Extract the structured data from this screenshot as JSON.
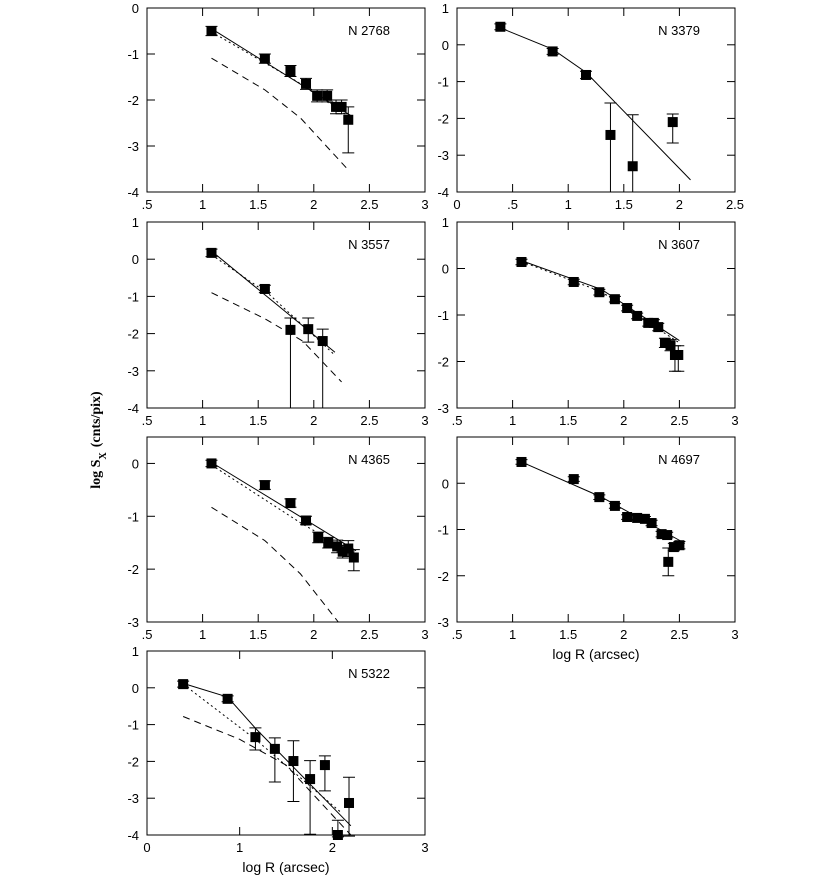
{
  "ylabel_parts": [
    "log S",
    "X",
    "(cnts/pix)"
  ],
  "chart_data": [
    {
      "type": "scatter",
      "label": "N 2768",
      "x": [
        1.08,
        1.56,
        1.79,
        1.93,
        2.03,
        2.12,
        2.2,
        2.25,
        2.31
      ],
      "y": [
        -0.5,
        -1.1,
        -1.37,
        -1.65,
        -1.91,
        -1.91,
        -2.15,
        -2.15,
        -2.43
      ],
      "yerr_minus": [
        0.1,
        0.1,
        0.12,
        0.12,
        0.13,
        0.13,
        0.15,
        0.15,
        0.72
      ],
      "yerr_plus": [
        0.1,
        0.1,
        0.12,
        0.12,
        0.13,
        0.13,
        0.15,
        0.15,
        0.28
      ],
      "lines": [
        {
          "style": "solid",
          "x": [
            1.08,
            2.34
          ],
          "y": [
            -0.45,
            -2.35
          ]
        },
        {
          "style": "dotted",
          "x": [
            1.08,
            1.85,
            2.34
          ],
          "y": [
            -0.52,
            -1.6,
            -2.4
          ]
        },
        {
          "style": "dashed",
          "x": [
            1.08,
            1.56,
            1.88,
            2.31
          ],
          "y": [
            -1.09,
            -1.78,
            -2.39,
            -3.52
          ]
        }
      ],
      "xlim": [
        0.5,
        3
      ],
      "ylim": [
        -4,
        0
      ],
      "xticks": [
        {
          "value": 0.5,
          "label": ".5"
        },
        1,
        1.5,
        2,
        2.5,
        3
      ],
      "yticks": [
        -4,
        -3,
        -2,
        -1,
        0
      ]
    },
    {
      "type": "scatter",
      "label": "N 3379",
      "x": [
        0.39,
        0.86,
        1.16,
        1.38,
        1.58,
        1.94
      ],
      "y": [
        0.49,
        -0.18,
        -0.82,
        -2.45,
        -3.3,
        -2.1
      ],
      "yerr_minus": [
        0.08,
        0.08,
        0.1,
        1.55,
        0.7,
        0.57
      ],
      "yerr_plus": [
        0.08,
        0.08,
        0.1,
        0.87,
        1.4,
        0.22
      ],
      "lines": [
        {
          "style": "solid",
          "x": [
            0.39,
            0.86,
            1.16,
            2.1
          ],
          "y": [
            0.46,
            -0.12,
            -0.75,
            -3.67
          ]
        }
      ],
      "xlim": [
        0,
        2.5
      ],
      "ylim": [
        -4,
        1
      ],
      "xticks": [
        0,
        {
          "value": 0.5,
          "label": ".5"
        },
        1,
        1.5,
        2,
        2.5
      ],
      "yticks": [
        -4,
        -3,
        -2,
        -1,
        0,
        1
      ]
    },
    {
      "type": "scatter",
      "label": "N 3557",
      "x": [
        1.08,
        1.56,
        1.79,
        1.95,
        2.08
      ],
      "y": [
        0.17,
        -0.8,
        -1.9,
        -1.88,
        -2.2
      ],
      "yerr_minus": [
        0.1,
        0.1,
        2.1,
        0.35,
        1.8
      ],
      "yerr_plus": [
        0.1,
        0.1,
        0.32,
        0.3,
        0.32
      ],
      "lines": [
        {
          "style": "solid",
          "x": [
            1.08,
            2.19
          ],
          "y": [
            0.22,
            -2.5
          ]
        },
        {
          "style": "dotted",
          "x": [
            1.08,
            1.6,
            2.19
          ],
          "y": [
            0.12,
            -0.95,
            -2.58
          ]
        },
        {
          "style": "dashed",
          "x": [
            1.08,
            1.56,
            1.9,
            2.25
          ],
          "y": [
            -0.9,
            -1.6,
            -2.2,
            -3.3
          ]
        }
      ],
      "xlim": [
        0.5,
        3
      ],
      "ylim": [
        -4,
        1
      ],
      "xticks": [
        {
          "value": 0.5,
          "label": ".5"
        },
        1,
        1.5,
        2,
        2.5,
        3
      ],
      "yticks": [
        -4,
        -3,
        -2,
        -1,
        0,
        1
      ]
    },
    {
      "type": "scatter",
      "label": "N 3607",
      "x": [
        1.08,
        1.55,
        1.78,
        1.92,
        2.03,
        2.12,
        2.22,
        2.27,
        2.31,
        2.37,
        2.42,
        2.46,
        2.49
      ],
      "y": [
        0.14,
        -0.29,
        -0.51,
        -0.66,
        -0.85,
        -1.02,
        -1.17,
        -1.17,
        -1.26,
        -1.6,
        -1.65,
        -1.86,
        -1.86
      ],
      "yerr_minus": [
        0.06,
        0.06,
        0.06,
        0.06,
        0.06,
        0.06,
        0.07,
        0.07,
        0.08,
        0.1,
        0.12,
        0.35,
        0.35
      ],
      "yerr_plus": [
        0.06,
        0.06,
        0.06,
        0.06,
        0.06,
        0.06,
        0.07,
        0.07,
        0.08,
        0.1,
        0.12,
        0.2,
        0.2
      ],
      "lines": [
        {
          "style": "solid",
          "x": [
            1.08,
            1.8,
            2.5
          ],
          "y": [
            0.17,
            -0.45,
            -1.55
          ]
        },
        {
          "style": "dotted",
          "x": [
            1.08,
            1.8,
            2.5
          ],
          "y": [
            0.15,
            -0.5,
            -1.6
          ]
        }
      ],
      "xlim": [
        0.5,
        3
      ],
      "ylim": [
        -3,
        1
      ],
      "xticks": [
        {
          "value": 0.5,
          "label": ".5"
        },
        1,
        1.5,
        2,
        2.5,
        3
      ],
      "yticks": [
        -3,
        -2,
        -1,
        0,
        1
      ]
    },
    {
      "type": "scatter",
      "label": "N 4365",
      "x": [
        1.08,
        1.56,
        1.79,
        1.93,
        2.04,
        2.13,
        2.21,
        2.26,
        2.31,
        2.36
      ],
      "y": [
        0,
        -0.41,
        -0.75,
        -1.08,
        -1.4,
        -1.5,
        -1.57,
        -1.67,
        -1.61,
        -1.78
      ],
      "yerr_minus": [
        0.06,
        0.08,
        0.08,
        0.08,
        0.1,
        0.1,
        0.12,
        0.12,
        0.15,
        0.25
      ],
      "yerr_plus": [
        0.06,
        0.08,
        0.08,
        0.08,
        0.1,
        0.1,
        0.12,
        0.12,
        0.15,
        0.15
      ],
      "lines": [
        {
          "style": "solid",
          "x": [
            1.08,
            2.38
          ],
          "y": [
            0.02,
            -1.65
          ]
        },
        {
          "style": "dotted",
          "x": [
            1.08,
            1.9,
            2.38
          ],
          "y": [
            -0.03,
            -1.15,
            -1.72
          ]
        },
        {
          "style": "dashed",
          "x": [
            1.08,
            1.56,
            1.88,
            2.22
          ],
          "y": [
            -0.83,
            -1.46,
            -2.09,
            -3
          ]
        }
      ],
      "xlim": [
        0.5,
        3
      ],
      "ylim": [
        -3,
        0.5
      ],
      "xticks": [
        {
          "value": 0.5,
          "label": ".5"
        },
        1,
        1.5,
        2,
        2.5,
        3
      ],
      "yticks": [
        -3,
        -2,
        -1,
        0
      ]
    },
    {
      "type": "scatter",
      "label": "N 4697",
      "xlabel": "log R (arcsec)",
      "x": [
        1.08,
        1.55,
        1.78,
        1.92,
        2.03,
        2.12,
        2.19,
        2.25,
        2.34,
        2.39,
        2.4,
        2.45,
        2.5
      ],
      "y": [
        0.46,
        0.09,
        -0.3,
        -0.49,
        -0.73,
        -0.75,
        -0.77,
        -0.86,
        -1.1,
        -1.12,
        -1.7,
        -1.38,
        -1.34
      ],
      "yerr_minus": [
        0.05,
        0.05,
        0.05,
        0.05,
        0.05,
        0.05,
        0.05,
        0.06,
        0.06,
        0.06,
        0.3,
        0.08,
        0.08
      ],
      "yerr_plus": [
        0.05,
        0.05,
        0.05,
        0.05,
        0.05,
        0.05,
        0.05,
        0.06,
        0.06,
        0.06,
        0.3,
        0.08,
        0.08
      ],
      "lines": [
        {
          "style": "solid",
          "x": [
            1.08,
            1.8,
            2.55
          ],
          "y": [
            0.46,
            -0.3,
            -1.3
          ]
        }
      ],
      "xlim": [
        0.5,
        3
      ],
      "ylim": [
        -3,
        1
      ],
      "xticks": [
        {
          "value": 0.5,
          "label": ".5"
        },
        1,
        1.5,
        2,
        2.5,
        3
      ],
      "yticks": [
        -3,
        -2,
        -1,
        0
      ]
    },
    {
      "type": "scatter",
      "label": "N 5322",
      "xlabel": "log R (arcsec)",
      "x": [
        0.39,
        0.87,
        1.17,
        1.38,
        1.58,
        1.76,
        1.92,
        2.06,
        2.18
      ],
      "y": [
        0.1,
        -0.3,
        -1.34,
        -1.66,
        -1.99,
        -2.48,
        -2.1,
        -4,
        -3.13
      ],
      "yerr_minus": [
        0.08,
        0.08,
        0.35,
        0.9,
        1.1,
        1.5,
        0.7,
        0.05,
        0.9
      ],
      "yerr_plus": [
        0.08,
        0.08,
        0.25,
        0.3,
        0.55,
        0.5,
        0.25,
        0.4,
        0.7
      ],
      "lines": [
        {
          "style": "solid",
          "x": [
            0.39,
            0.87,
            1.17,
            2.2
          ],
          "y": [
            0.12,
            -0.25,
            -1.1,
            -3.75
          ]
        },
        {
          "style": "dotted",
          "x": [
            0.39,
            1.17,
            2.1
          ],
          "y": [
            0.1,
            -1.4,
            -3.4
          ]
        },
        {
          "style": "dashed",
          "x": [
            0.39,
            1,
            1.5,
            2.2
          ],
          "y": [
            -0.78,
            -1.4,
            -2.1,
            -4
          ]
        }
      ],
      "xlim": [
        0,
        3
      ],
      "ylim": [
        -4,
        1
      ],
      "xticks": [
        0,
        1,
        2,
        3
      ],
      "yticks": [
        -4,
        -3,
        -2,
        -1,
        0,
        1
      ]
    }
  ]
}
